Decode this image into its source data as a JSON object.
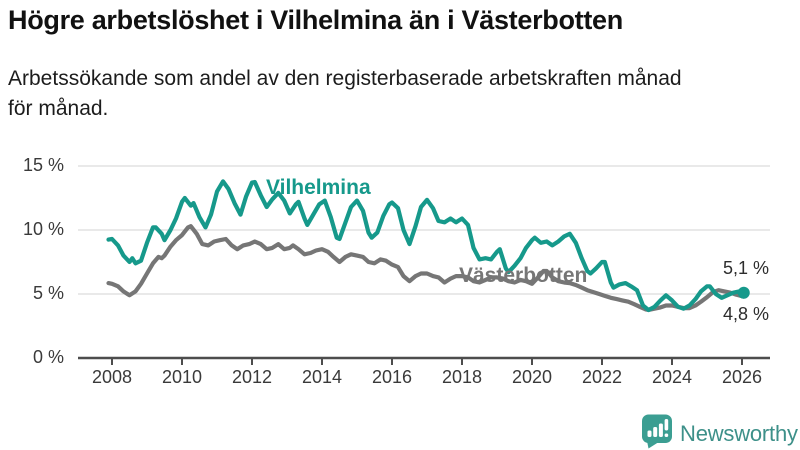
{
  "header": {
    "title": "Högre arbetslöshet i Vilhelmina än i Västerbotten",
    "subtitle_line1": "Arbetssökande som andel av den registerbaserade arbetskraften månad",
    "subtitle_line2": "för månad."
  },
  "branding": {
    "logo_text": "Newsworthy",
    "logo_color": "#3d9089",
    "icon_color": "#3b9e92",
    "icon_name": "newsworthy-speech-bubble-barchart-icon"
  },
  "chart_data": {
    "type": "line",
    "title": "Högre arbetslöshet i Vilhelmina än i Västerbotten",
    "subtitle": "Arbetssökande som andel av den registerbaserade arbetskraften månad för månad.",
    "unit": "%",
    "grid": true,
    "legend_position": "inline-labels",
    "x_axis": {
      "min": 2007.9,
      "max": 2026.35,
      "ticks": [
        {
          "value": 2008,
          "label": "2008"
        },
        {
          "value": 2010,
          "label": "2010"
        },
        {
          "value": 2012,
          "label": "2012"
        },
        {
          "value": 2014,
          "label": "2014"
        },
        {
          "value": 2016,
          "label": "2016"
        },
        {
          "value": 2018,
          "label": "2018"
        },
        {
          "value": 2020,
          "label": "2020"
        },
        {
          "value": 2022,
          "label": "2022"
        },
        {
          "value": 2024,
          "label": "2024"
        },
        {
          "value": 2026,
          "label": "2026"
        }
      ]
    },
    "y_axis": {
      "min": 0,
      "max": 15,
      "ticks": [
        {
          "value": 0,
          "label": "0 %"
        },
        {
          "value": 5,
          "label": "5 %"
        },
        {
          "value": 10,
          "label": "10 %"
        },
        {
          "value": 15,
          "label": "15 %"
        }
      ]
    },
    "series": [
      {
        "name": "Vilhelmina",
        "color": "#16998b",
        "end_label": "5,1 %",
        "end_value": 5.1,
        "end_dot": true,
        "points": [
          [
            2007.9,
            9.25
          ],
          [
            2008.0,
            9.3
          ],
          [
            2008.17,
            8.8
          ],
          [
            2008.33,
            8.0
          ],
          [
            2008.5,
            7.5
          ],
          [
            2008.58,
            7.8
          ],
          [
            2008.67,
            7.4
          ],
          [
            2008.83,
            7.6
          ],
          [
            2009.0,
            9.0
          ],
          [
            2009.17,
            10.2
          ],
          [
            2009.25,
            10.2
          ],
          [
            2009.42,
            9.7
          ],
          [
            2009.5,
            9.2
          ],
          [
            2009.67,
            10.0
          ],
          [
            2009.83,
            10.9
          ],
          [
            2010.0,
            12.2
          ],
          [
            2010.08,
            12.5
          ],
          [
            2010.25,
            11.9
          ],
          [
            2010.33,
            12.1
          ],
          [
            2010.5,
            11.0
          ],
          [
            2010.67,
            10.2
          ],
          [
            2010.83,
            11.2
          ],
          [
            2011.0,
            13.0
          ],
          [
            2011.17,
            13.8
          ],
          [
            2011.33,
            13.2
          ],
          [
            2011.5,
            12.1
          ],
          [
            2011.67,
            11.2
          ],
          [
            2011.83,
            12.6
          ],
          [
            2012.0,
            13.7
          ],
          [
            2012.08,
            13.75
          ],
          [
            2012.25,
            12.7
          ],
          [
            2012.42,
            11.8
          ],
          [
            2012.58,
            12.4
          ],
          [
            2012.75,
            12.9
          ],
          [
            2012.92,
            12.3
          ],
          [
            2013.08,
            11.3
          ],
          [
            2013.25,
            12.0
          ],
          [
            2013.33,
            12.2
          ],
          [
            2013.5,
            10.9
          ],
          [
            2013.58,
            10.4
          ],
          [
            2013.75,
            11.2
          ],
          [
            2013.92,
            12.0
          ],
          [
            2014.08,
            12.3
          ],
          [
            2014.25,
            11.0
          ],
          [
            2014.42,
            9.4
          ],
          [
            2014.5,
            9.3
          ],
          [
            2014.67,
            10.6
          ],
          [
            2014.83,
            11.8
          ],
          [
            2015.0,
            12.3
          ],
          [
            2015.17,
            11.5
          ],
          [
            2015.33,
            9.8
          ],
          [
            2015.42,
            9.4
          ],
          [
            2015.58,
            9.8
          ],
          [
            2015.75,
            11.1
          ],
          [
            2015.92,
            12.0
          ],
          [
            2016.0,
            12.15
          ],
          [
            2016.17,
            11.7
          ],
          [
            2016.33,
            10.0
          ],
          [
            2016.5,
            8.9
          ],
          [
            2016.67,
            10.3
          ],
          [
            2016.83,
            11.8
          ],
          [
            2017.0,
            12.35
          ],
          [
            2017.17,
            11.7
          ],
          [
            2017.33,
            10.7
          ],
          [
            2017.5,
            10.6
          ],
          [
            2017.67,
            10.9
          ],
          [
            2017.83,
            10.6
          ],
          [
            2018.0,
            10.9
          ],
          [
            2018.17,
            10.4
          ],
          [
            2018.33,
            8.6
          ],
          [
            2018.5,
            7.7
          ],
          [
            2018.67,
            7.8
          ],
          [
            2018.83,
            7.7
          ],
          [
            2019.0,
            8.3
          ],
          [
            2019.08,
            8.5
          ],
          [
            2019.25,
            7.0
          ],
          [
            2019.33,
            6.7
          ],
          [
            2019.5,
            7.2
          ],
          [
            2019.67,
            7.8
          ],
          [
            2019.83,
            8.6
          ],
          [
            2020.0,
            9.2
          ],
          [
            2020.08,
            9.4
          ],
          [
            2020.25,
            9.0
          ],
          [
            2020.42,
            9.1
          ],
          [
            2020.58,
            8.8
          ],
          [
            2020.75,
            9.1
          ],
          [
            2020.92,
            9.5
          ],
          [
            2021.08,
            9.7
          ],
          [
            2021.25,
            9.0
          ],
          [
            2021.42,
            7.8
          ],
          [
            2021.58,
            6.8
          ],
          [
            2021.67,
            6.6
          ],
          [
            2021.83,
            7.0
          ],
          [
            2022.0,
            7.5
          ],
          [
            2022.08,
            7.5
          ],
          [
            2022.25,
            5.9
          ],
          [
            2022.33,
            5.5
          ],
          [
            2022.5,
            5.75
          ],
          [
            2022.67,
            5.85
          ],
          [
            2022.83,
            5.6
          ],
          [
            2023.0,
            5.3
          ],
          [
            2023.17,
            4.1
          ],
          [
            2023.33,
            3.75
          ],
          [
            2023.5,
            4.0
          ],
          [
            2023.67,
            4.5
          ],
          [
            2023.83,
            4.9
          ],
          [
            2024.0,
            4.5
          ],
          [
            2024.17,
            4.0
          ],
          [
            2024.33,
            3.85
          ],
          [
            2024.5,
            4.1
          ],
          [
            2024.67,
            4.6
          ],
          [
            2024.83,
            5.2
          ],
          [
            2025.0,
            5.6
          ],
          [
            2025.08,
            5.6
          ],
          [
            2025.25,
            5.0
          ],
          [
            2025.42,
            4.7
          ],
          [
            2025.58,
            4.9
          ],
          [
            2025.75,
            5.1
          ],
          [
            2025.92,
            5.2
          ],
          [
            2026.05,
            5.1
          ]
        ]
      },
      {
        "name": "Västerbotten",
        "color": "#767676",
        "end_label": "4,8 %",
        "end_value": 4.8,
        "end_dot": false,
        "points": [
          [
            2007.9,
            5.85
          ],
          [
            2008.0,
            5.8
          ],
          [
            2008.17,
            5.6
          ],
          [
            2008.33,
            5.2
          ],
          [
            2008.5,
            4.9
          ],
          [
            2008.67,
            5.2
          ],
          [
            2008.83,
            5.8
          ],
          [
            2009.0,
            6.6
          ],
          [
            2009.17,
            7.4
          ],
          [
            2009.33,
            7.9
          ],
          [
            2009.42,
            7.8
          ],
          [
            2009.5,
            8.0
          ],
          [
            2009.67,
            8.7
          ],
          [
            2009.83,
            9.2
          ],
          [
            2010.0,
            9.6
          ],
          [
            2010.17,
            10.2
          ],
          [
            2010.25,
            10.3
          ],
          [
            2010.42,
            9.7
          ],
          [
            2010.58,
            8.9
          ],
          [
            2010.75,
            8.8
          ],
          [
            2010.92,
            9.1
          ],
          [
            2011.08,
            9.2
          ],
          [
            2011.25,
            9.3
          ],
          [
            2011.42,
            8.8
          ],
          [
            2011.58,
            8.5
          ],
          [
            2011.75,
            8.8
          ],
          [
            2011.92,
            8.9
          ],
          [
            2012.08,
            9.1
          ],
          [
            2012.25,
            8.9
          ],
          [
            2012.42,
            8.5
          ],
          [
            2012.58,
            8.6
          ],
          [
            2012.75,
            8.9
          ],
          [
            2012.92,
            8.5
          ],
          [
            2013.08,
            8.6
          ],
          [
            2013.17,
            8.8
          ],
          [
            2013.33,
            8.5
          ],
          [
            2013.5,
            8.1
          ],
          [
            2013.67,
            8.2
          ],
          [
            2013.83,
            8.4
          ],
          [
            2014.0,
            8.5
          ],
          [
            2014.17,
            8.3
          ],
          [
            2014.33,
            7.9
          ],
          [
            2014.5,
            7.5
          ],
          [
            2014.67,
            7.9
          ],
          [
            2014.83,
            8.1
          ],
          [
            2015.0,
            8.0
          ],
          [
            2015.17,
            7.9
          ],
          [
            2015.33,
            7.5
          ],
          [
            2015.5,
            7.4
          ],
          [
            2015.67,
            7.7
          ],
          [
            2015.83,
            7.6
          ],
          [
            2016.0,
            7.3
          ],
          [
            2016.17,
            7.1
          ],
          [
            2016.33,
            6.4
          ],
          [
            2016.5,
            6.0
          ],
          [
            2016.67,
            6.4
          ],
          [
            2016.83,
            6.6
          ],
          [
            2017.0,
            6.6
          ],
          [
            2017.17,
            6.4
          ],
          [
            2017.33,
            6.3
          ],
          [
            2017.5,
            5.9
          ],
          [
            2017.67,
            6.2
          ],
          [
            2017.83,
            6.4
          ],
          [
            2018.0,
            6.4
          ],
          [
            2018.17,
            6.3
          ],
          [
            2018.33,
            6.0
          ],
          [
            2018.5,
            5.9
          ],
          [
            2018.67,
            6.1
          ],
          [
            2018.83,
            6.3
          ],
          [
            2019.0,
            6.3
          ],
          [
            2019.17,
            6.2
          ],
          [
            2019.33,
            6.0
          ],
          [
            2019.5,
            5.9
          ],
          [
            2019.67,
            6.1
          ],
          [
            2019.83,
            6.0
          ],
          [
            2020.0,
            5.8
          ],
          [
            2020.17,
            6.3
          ],
          [
            2020.33,
            6.8
          ],
          [
            2020.42,
            6.8
          ],
          [
            2020.58,
            6.3
          ],
          [
            2020.75,
            6.0
          ],
          [
            2020.92,
            5.9
          ],
          [
            2021.08,
            5.85
          ],
          [
            2021.25,
            5.7
          ],
          [
            2021.42,
            5.5
          ],
          [
            2021.58,
            5.3
          ],
          [
            2021.75,
            5.15
          ],
          [
            2021.92,
            5.0
          ],
          [
            2022.08,
            4.85
          ],
          [
            2022.25,
            4.7
          ],
          [
            2022.42,
            4.6
          ],
          [
            2022.58,
            4.5
          ],
          [
            2022.75,
            4.4
          ],
          [
            2022.92,
            4.2
          ],
          [
            2023.08,
            4.0
          ],
          [
            2023.25,
            3.8
          ],
          [
            2023.33,
            3.75
          ],
          [
            2023.5,
            3.85
          ],
          [
            2023.67,
            3.95
          ],
          [
            2023.83,
            4.1
          ],
          [
            2024.0,
            4.1
          ],
          [
            2024.17,
            4.0
          ],
          [
            2024.33,
            3.9
          ],
          [
            2024.5,
            3.9
          ],
          [
            2024.67,
            4.1
          ],
          [
            2024.83,
            4.4
          ],
          [
            2025.0,
            4.75
          ],
          [
            2025.17,
            5.15
          ],
          [
            2025.33,
            5.3
          ],
          [
            2025.5,
            5.2
          ],
          [
            2025.67,
            5.1
          ],
          [
            2025.83,
            4.95
          ],
          [
            2026.05,
            4.8
          ]
        ]
      }
    ]
  }
}
